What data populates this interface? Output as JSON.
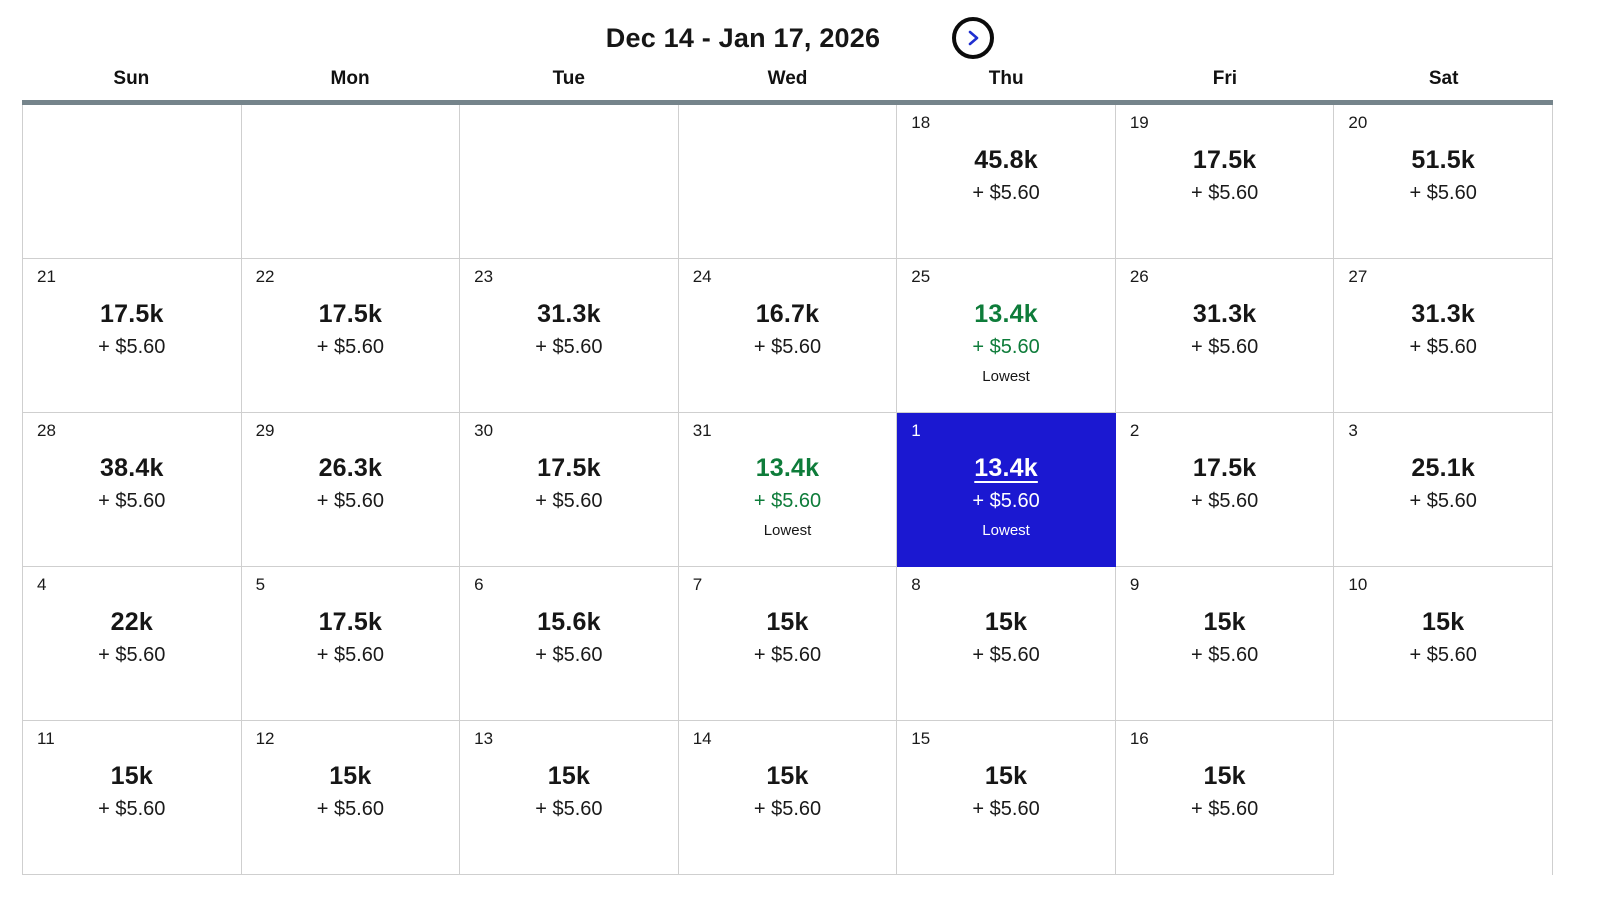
{
  "header": {
    "title": "Dec 14 - Jan 17, 2026",
    "next_icon": "chevron-right"
  },
  "weekdays": [
    "Sun",
    "Mon",
    "Tue",
    "Wed",
    "Thu",
    "Fri",
    "Sat"
  ],
  "colors": {
    "selected_bg": "#1B18D1",
    "lowest_green": "#0E7C3A",
    "divider_bar": "#75848B",
    "grid_border": "#CFCFCF",
    "chevron_blue": "#1F2FD0"
  },
  "labels": {
    "lowest": "Lowest"
  },
  "calendar": {
    "weeks": [
      [
        {
          "day": "",
          "miles": "",
          "tax": "",
          "badge": "",
          "state": "empty"
        },
        {
          "day": "",
          "miles": "",
          "tax": "",
          "badge": "",
          "state": "empty"
        },
        {
          "day": "",
          "miles": "",
          "tax": "",
          "badge": "",
          "state": "empty"
        },
        {
          "day": "",
          "miles": "",
          "tax": "",
          "badge": "",
          "state": "empty"
        },
        {
          "day": "18",
          "miles": "45.8k",
          "tax": "+ $5.60",
          "badge": "",
          "state": "default"
        },
        {
          "day": "19",
          "miles": "17.5k",
          "tax": "+ $5.60",
          "badge": "",
          "state": "default"
        },
        {
          "day": "20",
          "miles": "51.5k",
          "tax": "+ $5.60",
          "badge": "",
          "state": "default"
        }
      ],
      [
        {
          "day": "21",
          "miles": "17.5k",
          "tax": "+ $5.60",
          "badge": "",
          "state": "default"
        },
        {
          "day": "22",
          "miles": "17.5k",
          "tax": "+ $5.60",
          "badge": "",
          "state": "default"
        },
        {
          "day": "23",
          "miles": "31.3k",
          "tax": "+ $5.60",
          "badge": "",
          "state": "default"
        },
        {
          "day": "24",
          "miles": "16.7k",
          "tax": "+ $5.60",
          "badge": "",
          "state": "default"
        },
        {
          "day": "25",
          "miles": "13.4k",
          "tax": "+ $5.60",
          "badge": "Lowest",
          "state": "lowest"
        },
        {
          "day": "26",
          "miles": "31.3k",
          "tax": "+ $5.60",
          "badge": "",
          "state": "default"
        },
        {
          "day": "27",
          "miles": "31.3k",
          "tax": "+ $5.60",
          "badge": "",
          "state": "default"
        }
      ],
      [
        {
          "day": "28",
          "miles": "38.4k",
          "tax": "+ $5.60",
          "badge": "",
          "state": "default"
        },
        {
          "day": "29",
          "miles": "26.3k",
          "tax": "+ $5.60",
          "badge": "",
          "state": "default"
        },
        {
          "day": "30",
          "miles": "17.5k",
          "tax": "+ $5.60",
          "badge": "",
          "state": "default"
        },
        {
          "day": "31",
          "miles": "13.4k",
          "tax": "+ $5.60",
          "badge": "Lowest",
          "state": "lowest"
        },
        {
          "day": "1",
          "miles": "13.4k",
          "tax": "+ $5.60",
          "badge": "Lowest",
          "state": "selected"
        },
        {
          "day": "2",
          "miles": "17.5k",
          "tax": "+ $5.60",
          "badge": "",
          "state": "default"
        },
        {
          "day": "3",
          "miles": "25.1k",
          "tax": "+ $5.60",
          "badge": "",
          "state": "default"
        }
      ],
      [
        {
          "day": "4",
          "miles": "22k",
          "tax": "+ $5.60",
          "badge": "",
          "state": "default"
        },
        {
          "day": "5",
          "miles": "17.5k",
          "tax": "+ $5.60",
          "badge": "",
          "state": "default"
        },
        {
          "day": "6",
          "miles": "15.6k",
          "tax": "+ $5.60",
          "badge": "",
          "state": "default"
        },
        {
          "day": "7",
          "miles": "15k",
          "tax": "+ $5.60",
          "badge": "",
          "state": "default"
        },
        {
          "day": "8",
          "miles": "15k",
          "tax": "+ $5.60",
          "badge": "",
          "state": "default"
        },
        {
          "day": "9",
          "miles": "15k",
          "tax": "+ $5.60",
          "badge": "",
          "state": "default"
        },
        {
          "day": "10",
          "miles": "15k",
          "tax": "+ $5.60",
          "badge": "",
          "state": "default"
        }
      ],
      [
        {
          "day": "11",
          "miles": "15k",
          "tax": "+ $5.60",
          "badge": "",
          "state": "default"
        },
        {
          "day": "12",
          "miles": "15k",
          "tax": "+ $5.60",
          "badge": "",
          "state": "default"
        },
        {
          "day": "13",
          "miles": "15k",
          "tax": "+ $5.60",
          "badge": "",
          "state": "default"
        },
        {
          "day": "14",
          "miles": "15k",
          "tax": "+ $5.60",
          "badge": "",
          "state": "default"
        },
        {
          "day": "15",
          "miles": "15k",
          "tax": "+ $5.60",
          "badge": "",
          "state": "default"
        },
        {
          "day": "16",
          "miles": "15k",
          "tax": "+ $5.60",
          "badge": "",
          "state": "default"
        },
        {
          "day": "",
          "miles": "",
          "tax": "",
          "badge": "",
          "state": "empty"
        }
      ]
    ]
  }
}
